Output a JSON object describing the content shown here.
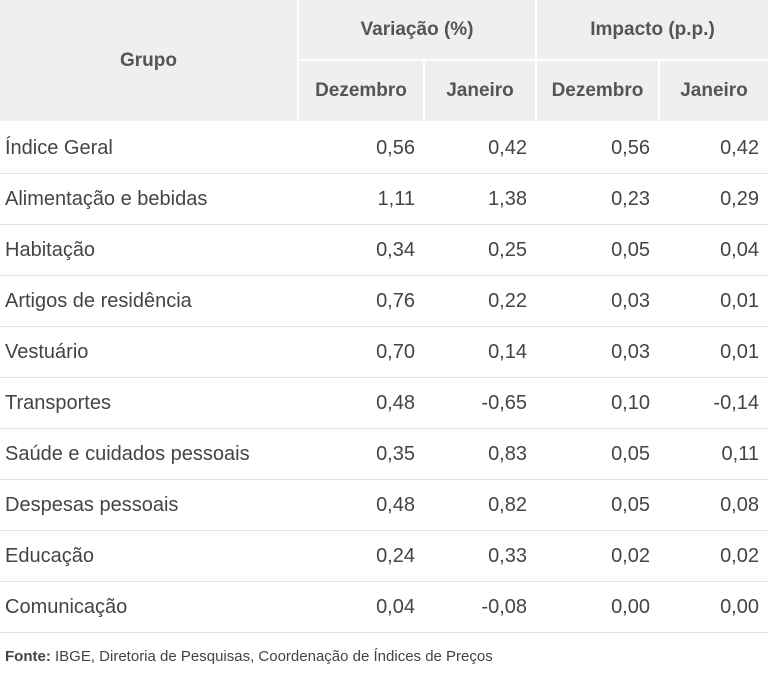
{
  "table": {
    "header": {
      "group_label": "Grupo",
      "variacao_label": "Variação (%)",
      "impacto_label": "Impacto (p.p.)",
      "sub_cols": [
        "Dezembro",
        "Janeiro",
        "Dezembro",
        "Janeiro"
      ]
    },
    "rows": [
      {
        "grupo": "Índice Geral",
        "var_dez": "0,56",
        "var_jan": "0,42",
        "imp_dez": "0,56",
        "imp_jan": "0,42"
      },
      {
        "grupo": "Alimentação e bebidas",
        "var_dez": "1,11",
        "var_jan": "1,38",
        "imp_dez": "0,23",
        "imp_jan": "0,29"
      },
      {
        "grupo": "Habitação",
        "var_dez": "0,34",
        "var_jan": "0,25",
        "imp_dez": "0,05",
        "imp_jan": "0,04"
      },
      {
        "grupo": "Artigos de residência",
        "var_dez": "0,76",
        "var_jan": "0,22",
        "imp_dez": "0,03",
        "imp_jan": "0,01"
      },
      {
        "grupo": "Vestuário",
        "var_dez": "0,70",
        "var_jan": "0,14",
        "imp_dez": "0,03",
        "imp_jan": "0,01"
      },
      {
        "grupo": "Transportes",
        "var_dez": "0,48",
        "var_jan": "-0,65",
        "imp_dez": "0,10",
        "imp_jan": "-0,14"
      },
      {
        "grupo": "Saúde e cuidados pessoais",
        "var_dez": "0,35",
        "var_jan": "0,83",
        "imp_dez": "0,05",
        "imp_jan": "0,11"
      },
      {
        "grupo": "Despesas pessoais",
        "var_dez": "0,48",
        "var_jan": "0,82",
        "imp_dez": "0,05",
        "imp_jan": "0,08"
      },
      {
        "grupo": "Educação",
        "var_dez": "0,24",
        "var_jan": "0,33",
        "imp_dez": "0,02",
        "imp_jan": "0,02"
      },
      {
        "grupo": "Comunicação",
        "var_dez": "0,04",
        "var_jan": "-0,08",
        "imp_dez": "0,00",
        "imp_jan": "0,00"
      }
    ]
  },
  "source": {
    "label": "Fonte:",
    "text": " IBGE, Diretoria de Pesquisas, Coordenação de Índices de Preços"
  },
  "colors": {
    "header_bg": "#efefef",
    "text": "#444444",
    "row_border": "#e3e3e3"
  }
}
